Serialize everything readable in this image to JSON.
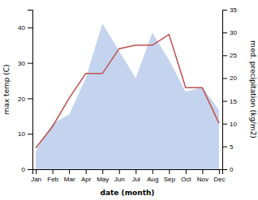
{
  "chart_data": {
    "type": "line",
    "x_label": "date (month)",
    "y_label": "max temp (C)",
    "y2_label": "med. precipitation (kg/m2)",
    "categories": [
      "Jan",
      "Feb",
      "Mar",
      "Apr",
      "May",
      "Jun",
      "Jul",
      "Aug",
      "Sep",
      "Oct",
      "Nov",
      "Dec"
    ],
    "series": [
      {
        "type": "area",
        "axis": "y2",
        "color": "#c5d4ee",
        "values": [
          4,
          10,
          12,
          20,
          32,
          26,
          20,
          30,
          24,
          17,
          18,
          13
        ]
      },
      {
        "type": "line",
        "color": "#c0504d",
        "values": [
          6,
          12,
          20,
          27,
          27,
          34,
          35,
          35,
          38,
          23,
          23,
          13
        ]
      }
    ],
    "ylim": [
      0,
      45
    ],
    "yticks": [
      0,
      10,
      20,
      30,
      40
    ],
    "y2lim": [
      0,
      35
    ],
    "y2ticks": [
      0,
      5,
      10,
      15,
      20,
      25,
      30,
      35
    ],
    "grid": false
  }
}
